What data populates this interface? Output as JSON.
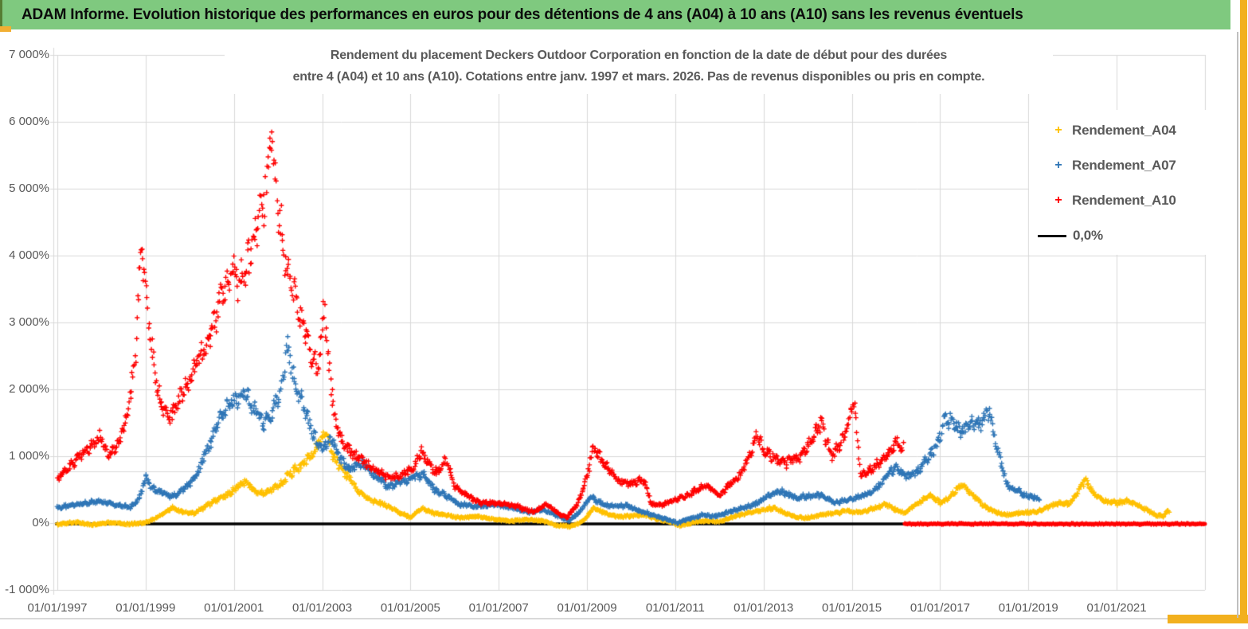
{
  "banner": {
    "title": "ADAM Informe. Evolution historique des performances en euros pour des détentions de 4 ans (A04) à 10 ans (A10) sans les revenus éventuels"
  },
  "chart_data": {
    "type": "scatter",
    "title_line1": "Rendement du placement Deckers Outdoor Corporation en fonction de la date de début pour des durées",
    "title_line2": "entre 4 (A04) et 10 ans (A10). Cotations entre janv. 1997 et mars. 2026. Pas de revenus disponibles ou pris en compte.",
    "x_axis": {
      "tick_labels": [
        "01/01/1997",
        "01/01/1999",
        "01/01/2001",
        "01/01/2003",
        "01/01/2005",
        "01/01/2007",
        "01/01/2009",
        "01/01/2011",
        "01/01/2013",
        "01/01/2015",
        "01/01/2017",
        "01/01/2019",
        "01/01/2021"
      ],
      "tick_years": [
        1997,
        1999,
        2001,
        2003,
        2005,
        2007,
        2009,
        2011,
        2013,
        2015,
        2017,
        2019,
        2021
      ],
      "gridline_years": [
        1997,
        1999,
        2001,
        2003,
        2005,
        2007,
        2009,
        2011,
        2013,
        2015,
        2017,
        2019,
        2021,
        2023
      ],
      "range_years": [
        1996.95,
        2023.1
      ],
      "grid": true
    },
    "y_axis": {
      "tick_labels": [
        "7 000%",
        "6 000%",
        "5 000%",
        "4 000%",
        "3 000%",
        "2 000%",
        "1 000%",
        "0%",
        "-1 000%"
      ],
      "tick_values": [
        7000,
        6000,
        5000,
        4000,
        3000,
        2000,
        1000,
        0,
        -1000
      ],
      "range": [
        -1000,
        7000
      ],
      "unit": "%",
      "grid": true
    },
    "legend": {
      "position": "right",
      "items": [
        {
          "label": "Rendement_A04",
          "color": "#FFC000",
          "marker": "plus"
        },
        {
          "label": "Rendement_A07",
          "color": "#2E75B6",
          "marker": "plus"
        },
        {
          "label": "Rendement_A10",
          "color": "#FF0000",
          "marker": "plus"
        },
        {
          "label": "0,0%",
          "color": "#000000",
          "marker": "line"
        }
      ]
    },
    "baseline": {
      "name": "0,0%",
      "color": "#000000",
      "value": 0,
      "from_year": 1996.95,
      "to_year": 2016.2
    },
    "series": [
      {
        "name": "Rendement_A04",
        "color": "#FFC000",
        "marker": "plus",
        "anchors": [
          [
            1997.0,
            -20
          ],
          [
            1997.4,
            15
          ],
          [
            1997.8,
            -25
          ],
          [
            1998.2,
            10
          ],
          [
            1998.6,
            -15
          ],
          [
            1999.0,
            5
          ],
          [
            1999.3,
            100
          ],
          [
            1999.6,
            230
          ],
          [
            1999.85,
            160
          ],
          [
            2000.1,
            140
          ],
          [
            2000.35,
            250
          ],
          [
            2000.6,
            340
          ],
          [
            2000.85,
            420
          ],
          [
            2001.1,
            550
          ],
          [
            2001.25,
            640
          ],
          [
            2001.45,
            500
          ],
          [
            2001.65,
            430
          ],
          [
            2001.85,
            500
          ],
          [
            2002.05,
            580
          ],
          [
            2002.3,
            750
          ],
          [
            2002.55,
            880
          ],
          [
            2002.8,
            1050
          ],
          [
            2003.0,
            1300
          ],
          [
            2003.1,
            1320
          ],
          [
            2003.25,
            1000
          ],
          [
            2003.45,
            800
          ],
          [
            2003.65,
            650
          ],
          [
            2003.85,
            450
          ],
          [
            2004.1,
            350
          ],
          [
            2004.4,
            280
          ],
          [
            2004.7,
            180
          ],
          [
            2005.0,
            80
          ],
          [
            2005.25,
            220
          ],
          [
            2005.5,
            150
          ],
          [
            2005.8,
            120
          ],
          [
            2006.1,
            80
          ],
          [
            2006.5,
            100
          ],
          [
            2006.9,
            60
          ],
          [
            2007.3,
            30
          ],
          [
            2007.7,
            60
          ],
          [
            2008.0,
            30
          ],
          [
            2008.3,
            -30
          ],
          [
            2008.6,
            -50
          ],
          [
            2008.9,
            20
          ],
          [
            2009.15,
            230
          ],
          [
            2009.4,
            150
          ],
          [
            2009.7,
            90
          ],
          [
            2010.0,
            110
          ],
          [
            2010.3,
            120
          ],
          [
            2010.6,
            60
          ],
          [
            2010.9,
            20
          ],
          [
            2011.1,
            -40
          ],
          [
            2011.4,
            10
          ],
          [
            2011.7,
            40
          ],
          [
            2012.0,
            20
          ],
          [
            2012.3,
            90
          ],
          [
            2012.6,
            150
          ],
          [
            2012.9,
            180
          ],
          [
            2013.2,
            230
          ],
          [
            2013.5,
            150
          ],
          [
            2013.75,
            90
          ],
          [
            2014.0,
            80
          ],
          [
            2014.3,
            120
          ],
          [
            2014.6,
            150
          ],
          [
            2014.9,
            180
          ],
          [
            2015.2,
            160
          ],
          [
            2015.5,
            220
          ],
          [
            2015.75,
            280
          ],
          [
            2016.0,
            200
          ],
          [
            2016.2,
            150
          ],
          [
            2016.5,
            300
          ],
          [
            2016.8,
            420
          ],
          [
            2017.0,
            300
          ],
          [
            2017.2,
            380
          ],
          [
            2017.5,
            580
          ],
          [
            2017.75,
            420
          ],
          [
            2018.0,
            250
          ],
          [
            2018.3,
            150
          ],
          [
            2018.6,
            120
          ],
          [
            2018.9,
            160
          ],
          [
            2019.2,
            170
          ],
          [
            2019.5,
            250
          ],
          [
            2019.7,
            300
          ],
          [
            2019.9,
            280
          ],
          [
            2020.1,
            450
          ],
          [
            2020.3,
            650
          ],
          [
            2020.5,
            420
          ],
          [
            2020.75,
            330
          ],
          [
            2021.0,
            300
          ],
          [
            2021.3,
            330
          ],
          [
            2021.6,
            220
          ],
          [
            2021.9,
            120
          ],
          [
            2022.05,
            100
          ],
          [
            2022.15,
            180
          ],
          [
            2022.2,
            140
          ]
        ]
      },
      {
        "name": "Rendement_A07",
        "color": "#2E75B6",
        "marker": "plus",
        "anchors": [
          [
            1997.0,
            230
          ],
          [
            1997.5,
            280
          ],
          [
            1998.0,
            330
          ],
          [
            1998.35,
            270
          ],
          [
            1998.65,
            230
          ],
          [
            1998.85,
            350
          ],
          [
            1999.0,
            700
          ],
          [
            1999.15,
            520
          ],
          [
            1999.35,
            450
          ],
          [
            1999.6,
            400
          ],
          [
            1999.8,
            480
          ],
          [
            2000.0,
            600
          ],
          [
            2000.2,
            800
          ],
          [
            2000.4,
            1100
          ],
          [
            2000.65,
            1500
          ],
          [
            2000.85,
            1750
          ],
          [
            2001.05,
            1850
          ],
          [
            2001.25,
            1950
          ],
          [
            2001.45,
            1700
          ],
          [
            2001.65,
            1500
          ],
          [
            2001.85,
            1650
          ],
          [
            2002.05,
            1950
          ],
          [
            2002.2,
            2700
          ],
          [
            2002.35,
            2200
          ],
          [
            2002.55,
            1800
          ],
          [
            2002.75,
            1400
          ],
          [
            2003.0,
            1100
          ],
          [
            2003.2,
            1300
          ],
          [
            2003.4,
            950
          ],
          [
            2003.65,
            800
          ],
          [
            2003.9,
            900
          ],
          [
            2004.2,
            700
          ],
          [
            2004.5,
            550
          ],
          [
            2004.8,
            620
          ],
          [
            2005.05,
            680
          ],
          [
            2005.3,
            720
          ],
          [
            2005.55,
            500
          ],
          [
            2005.8,
            420
          ],
          [
            2006.1,
            280
          ],
          [
            2006.5,
            250
          ],
          [
            2006.9,
            270
          ],
          [
            2007.3,
            230
          ],
          [
            2007.7,
            160
          ],
          [
            2008.0,
            200
          ],
          [
            2008.3,
            120
          ],
          [
            2008.6,
            40
          ],
          [
            2008.85,
            180
          ],
          [
            2009.1,
            400
          ],
          [
            2009.35,
            280
          ],
          [
            2009.6,
            250
          ],
          [
            2009.9,
            260
          ],
          [
            2010.2,
            180
          ],
          [
            2010.5,
            120
          ],
          [
            2010.8,
            60
          ],
          [
            2011.05,
            0
          ],
          [
            2011.3,
            60
          ],
          [
            2011.6,
            120
          ],
          [
            2011.9,
            100
          ],
          [
            2012.2,
            160
          ],
          [
            2012.5,
            220
          ],
          [
            2012.8,
            280
          ],
          [
            2013.1,
            400
          ],
          [
            2013.4,
            480
          ],
          [
            2013.7,
            380
          ],
          [
            2014.0,
            400
          ],
          [
            2014.3,
            420
          ],
          [
            2014.6,
            300
          ],
          [
            2014.9,
            350
          ],
          [
            2015.2,
            400
          ],
          [
            2015.5,
            480
          ],
          [
            2015.8,
            700
          ],
          [
            2016.0,
            850
          ],
          [
            2016.2,
            700
          ],
          [
            2016.45,
            750
          ],
          [
            2016.7,
            950
          ],
          [
            2016.95,
            1200
          ],
          [
            2017.1,
            1550
          ],
          [
            2017.3,
            1500
          ],
          [
            2017.5,
            1350
          ],
          [
            2017.7,
            1500
          ],
          [
            2017.9,
            1450
          ],
          [
            2018.1,
            1700
          ],
          [
            2018.3,
            1100
          ],
          [
            2018.5,
            600
          ],
          [
            2018.7,
            500
          ],
          [
            2018.9,
            420
          ],
          [
            2019.1,
            380
          ],
          [
            2019.25,
            350
          ]
        ]
      },
      {
        "name": "Rendement_A10",
        "color": "#FF0000",
        "marker": "plus",
        "zero_tail": {
          "from_year": 2016.2,
          "to_year": 2023.0,
          "value": 0
        },
        "anchors": [
          [
            1997.0,
            650
          ],
          [
            1997.25,
            820
          ],
          [
            1997.5,
            1000
          ],
          [
            1997.75,
            1150
          ],
          [
            1998.0,
            1300
          ],
          [
            1998.15,
            1000
          ],
          [
            1998.35,
            1150
          ],
          [
            1998.55,
            1500
          ],
          [
            1998.75,
            2300
          ],
          [
            1998.9,
            4100
          ],
          [
            1999.05,
            3200
          ],
          [
            1999.2,
            2200
          ],
          [
            1999.4,
            1650
          ],
          [
            1999.6,
            1600
          ],
          [
            1999.8,
            1900
          ],
          [
            2000.0,
            2150
          ],
          [
            2000.25,
            2500
          ],
          [
            2000.5,
            2900
          ],
          [
            2000.75,
            3400
          ],
          [
            2000.95,
            3800
          ],
          [
            2001.1,
            3500
          ],
          [
            2001.3,
            3900
          ],
          [
            2001.5,
            4300
          ],
          [
            2001.7,
            4900
          ],
          [
            2001.85,
            5800
          ],
          [
            2002.0,
            4800
          ],
          [
            2002.15,
            3900
          ],
          [
            2002.3,
            3500
          ],
          [
            2002.5,
            3150
          ],
          [
            2002.7,
            2650
          ],
          [
            2002.9,
            2250
          ],
          [
            2003.05,
            3300
          ],
          [
            2003.15,
            2400
          ],
          [
            2003.3,
            1500
          ],
          [
            2003.5,
            1150
          ],
          [
            2003.75,
            1000
          ],
          [
            2004.0,
            900
          ],
          [
            2004.3,
            750
          ],
          [
            2004.6,
            680
          ],
          [
            2004.9,
            750
          ],
          [
            2005.1,
            850
          ],
          [
            2005.25,
            1100
          ],
          [
            2005.4,
            900
          ],
          [
            2005.6,
            750
          ],
          [
            2005.8,
            950
          ],
          [
            2006.0,
            550
          ],
          [
            2006.3,
            400
          ],
          [
            2006.6,
            300
          ],
          [
            2007.0,
            300
          ],
          [
            2007.4,
            250
          ],
          [
            2007.8,
            170
          ],
          [
            2008.1,
            280
          ],
          [
            2008.35,
            150
          ],
          [
            2008.55,
            80
          ],
          [
            2008.8,
            300
          ],
          [
            2009.0,
            700
          ],
          [
            2009.15,
            1150
          ],
          [
            2009.3,
            950
          ],
          [
            2009.5,
            800
          ],
          [
            2009.75,
            600
          ],
          [
            2010.0,
            600
          ],
          [
            2010.3,
            640
          ],
          [
            2010.45,
            280
          ],
          [
            2010.7,
            270
          ],
          [
            2011.0,
            350
          ],
          [
            2011.3,
            420
          ],
          [
            2011.6,
            550
          ],
          [
            2011.8,
            520
          ],
          [
            2012.0,
            400
          ],
          [
            2012.2,
            550
          ],
          [
            2012.5,
            750
          ],
          [
            2012.85,
            1300
          ],
          [
            2013.0,
            1100
          ],
          [
            2013.2,
            1000
          ],
          [
            2013.5,
            900
          ],
          [
            2013.7,
            950
          ],
          [
            2013.9,
            1050
          ],
          [
            2014.1,
            1250
          ],
          [
            2014.3,
            1500
          ],
          [
            2014.55,
            1000
          ],
          [
            2014.8,
            1250
          ],
          [
            2015.05,
            1800
          ],
          [
            2015.2,
            700
          ],
          [
            2015.45,
            800
          ],
          [
            2015.6,
            900
          ],
          [
            2015.8,
            1000
          ],
          [
            2016.0,
            1200
          ],
          [
            2016.18,
            1100
          ]
        ]
      }
    ]
  }
}
